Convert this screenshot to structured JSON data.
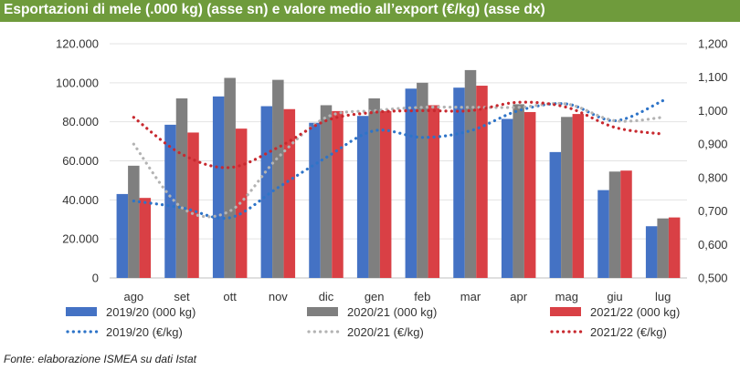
{
  "header": {
    "title": "Esportazioni di mele (.000 kg) (asse sn) e valore medio all’export (€/kg) (asse dx)"
  },
  "source": "Fonte: elaborazione ISMEA su dati Istat",
  "colors": {
    "title_bg": "#6f9b3c",
    "s2019_bar": "#4472c4",
    "s2020_bar": "#7f7f7f",
    "s2021_bar": "#d94045",
    "s2019_line": "#2e74c8",
    "s2020_line": "#b3b3b3",
    "s2021_line": "#c8292f"
  },
  "chart_data": {
    "type": "bar",
    "title": "Esportazioni di mele (.000 kg) (asse sn) e valore medio all’export (€/kg) (asse dx)",
    "categories": [
      "ago",
      "set",
      "ott",
      "nov",
      "dic",
      "gen",
      "feb",
      "mar",
      "apr",
      "mag",
      "giu",
      "lug"
    ],
    "left_axis": {
      "ylim": [
        0,
        120000
      ],
      "ticks": [
        "0",
        "20.000",
        "40.000",
        "60.000",
        "80.000",
        "100.000",
        "120.000"
      ]
    },
    "right_axis": {
      "ylim": [
        0.5,
        1.2
      ],
      "ticks": [
        "0,500",
        "0,600",
        "0,700",
        "0,800",
        "0,900",
        "1,000",
        "1,100",
        "1,200"
      ]
    },
    "series": [
      {
        "name": "2019/20 (000 kg)",
        "axis": "left",
        "kind": "bar",
        "color_key": "s2019_bar",
        "values": [
          43000,
          78500,
          93000,
          88000,
          79500,
          83000,
          97000,
          97500,
          81500,
          64500,
          45000,
          26500
        ]
      },
      {
        "name": "2020/21 (000 kg)",
        "axis": "left",
        "kind": "bar",
        "color_key": "s2020_bar",
        "values": [
          57500,
          92000,
          102500,
          101500,
          88500,
          92000,
          100000,
          106500,
          89000,
          82500,
          54500,
          30500
        ]
      },
      {
        "name": "2021/22 (000 kg)",
        "axis": "left",
        "kind": "bar",
        "color_key": "s2021_bar",
        "values": [
          41000,
          74500,
          76500,
          86500,
          85500,
          85500,
          88500,
          98500,
          85000,
          84000,
          55000,
          31000
        ]
      },
      {
        "name": "2019/20 (€/kg)",
        "axis": "right",
        "kind": "line",
        "color_key": "s2019_line",
        "values": [
          0.73,
          0.71,
          0.68,
          0.77,
          0.86,
          0.94,
          0.92,
          0.94,
          1.0,
          1.02,
          0.97,
          1.03
        ]
      },
      {
        "name": "2020/21 (€/kg)",
        "axis": "right",
        "kind": "line",
        "color_key": "s2020_line",
        "values": [
          0.9,
          0.71,
          0.7,
          0.86,
          0.98,
          1.0,
          1.01,
          1.01,
          1.01,
          1.02,
          0.97,
          0.98
        ]
      },
      {
        "name": "2021/22 (€/kg)",
        "axis": "right",
        "kind": "line",
        "color_key": "s2021_line",
        "values": [
          0.98,
          0.87,
          0.83,
          0.89,
          0.97,
          0.995,
          1.0,
          1.0,
          1.025,
          1.01,
          0.95,
          0.93
        ]
      }
    ],
    "legend": {
      "position": "bottom"
    }
  }
}
